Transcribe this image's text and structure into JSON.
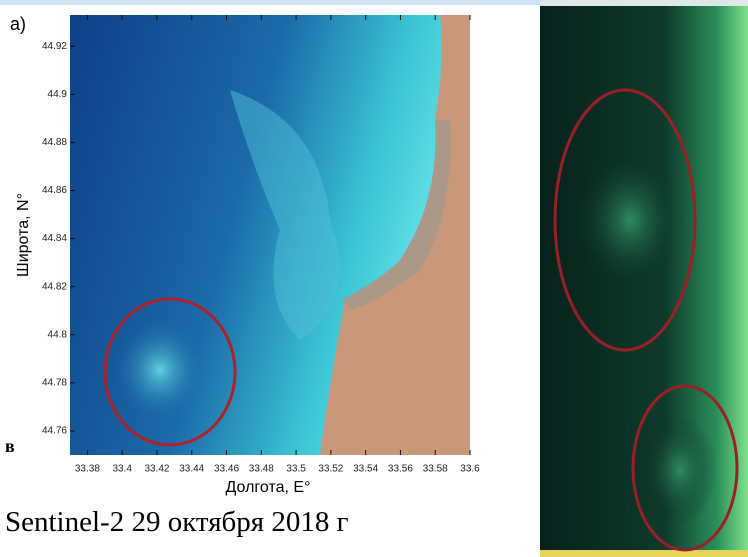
{
  "panel_label": "a)",
  "side_label": "в",
  "caption": "Sentinel-2 29 октября 2018 г",
  "map": {
    "x_label": "Долгота, E°",
    "y_label": "Широта, N°",
    "xlim": [
      33.37,
      33.6
    ],
    "ylim": [
      44.75,
      44.933
    ],
    "xticks": [
      33.38,
      33.4,
      33.42,
      33.44,
      33.46,
      33.48,
      33.5,
      33.52,
      33.54,
      33.56,
      33.58,
      33.6
    ],
    "yticks": [
      44.76,
      44.78,
      44.8,
      44.82,
      44.84,
      44.86,
      44.88,
      44.9,
      44.92
    ]
  }
}
